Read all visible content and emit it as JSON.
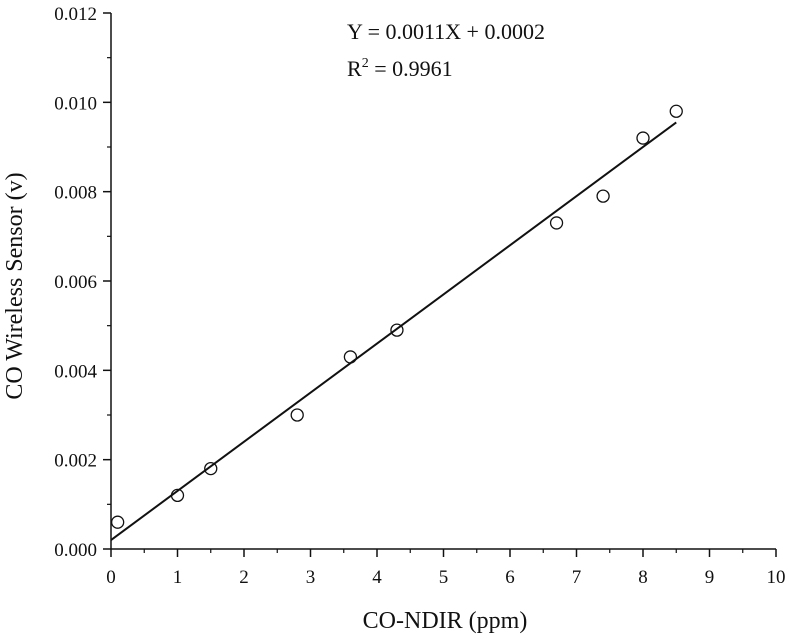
{
  "chart_data": {
    "type": "scatter",
    "xlabel": "CO-NDIR (ppm)",
    "ylabel": "CO Wireless Sensor (v)",
    "xlim": [
      0,
      10
    ],
    "ylim": [
      0,
      0.012
    ],
    "x_ticks": [
      "0",
      "1",
      "2",
      "3",
      "4",
      "5",
      "6",
      "7",
      "8",
      "9",
      "10"
    ],
    "y_ticks": [
      "0.000",
      "0.002",
      "0.004",
      "0.006",
      "0.008",
      "0.010",
      "0.012"
    ],
    "points": [
      {
        "x": 0.1,
        "y": 0.0006
      },
      {
        "x": 1.0,
        "y": 0.0012
      },
      {
        "x": 1.5,
        "y": 0.0018
      },
      {
        "x": 2.8,
        "y": 0.003
      },
      {
        "x": 3.6,
        "y": 0.0043
      },
      {
        "x": 4.3,
        "y": 0.0049
      },
      {
        "x": 6.7,
        "y": 0.0073
      },
      {
        "x": 7.4,
        "y": 0.0079
      },
      {
        "x": 8.0,
        "y": 0.0092
      },
      {
        "x": 8.5,
        "y": 0.0098
      }
    ],
    "fit": {
      "slope": 0.0011,
      "intercept": 0.0002,
      "x_range": [
        0,
        8.5
      ]
    },
    "annotation": {
      "equation": "Y = 0.0011X + 0.0002",
      "r2_prefix": "R",
      "r2_sup": "2",
      "r2_value": " = 0.9961"
    },
    "grid": false,
    "legend": "none",
    "marker": "open-circle",
    "colors": {
      "axis": "#111111",
      "marker": "#111111",
      "fit_line": "#111111"
    }
  }
}
